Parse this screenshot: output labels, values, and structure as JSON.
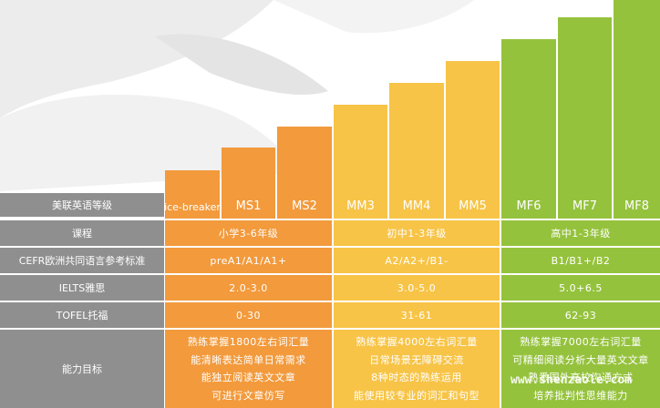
{
  "header_row": {
    "label": "美联英语等级",
    "levels": [
      "ice-breaker",
      "MS1",
      "MS2",
      "MM3",
      "MM4",
      "MM5",
      "MF6",
      "MF7",
      "MF8"
    ]
  },
  "rows": [
    {
      "label": "课程",
      "values": [
        "小学3-6年级",
        "初中1-3年级",
        "高中1-3年级"
      ]
    },
    {
      "label": "CEFR欧洲共同语言参考标准",
      "values": [
        "preA1/A1/A1+",
        "A2/A2+/B1-",
        "B1/B1+/B2"
      ]
    },
    {
      "label": "IELTS雅思",
      "values": [
        "2.0-3.0",
        "3.0-5.0",
        "5.0+6.5"
      ]
    },
    {
      "label": "TOFEL托福",
      "values": [
        "0-30",
        "31-61",
        "62-93"
      ]
    }
  ],
  "ability": {
    "label": "能力目标",
    "groups": [
      [
        "熟练掌握1800左右词汇量",
        "能清晰表达简单日常需求",
        "能独立阅读英文文章",
        "可进行文章仿写"
      ],
      [
        "熟练掌握4000左右词汇量",
        "日常场景无障碍交流",
        "8种时态的熟练运用",
        "能使用较专业的词汇和句型"
      ],
      [
        "熟练掌握7000左右词汇量",
        "可精细阅读分析大量英文文章",
        "熟悉国外高校沟通方式",
        "培养批判性思维能力"
      ]
    ]
  },
  "watermark": "www.shenzaole.com",
  "colors": {
    "orange": "#f29a3c",
    "yellow": "#f7c447",
    "green": "#95c23d",
    "label_gray": "#8f8f8f"
  }
}
